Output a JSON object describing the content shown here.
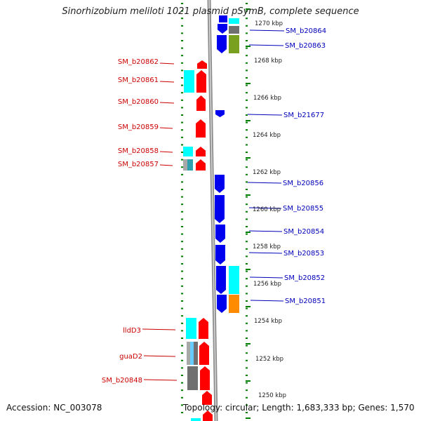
{
  "title": "Sinorhizobium meliloti 1021 plasmid pSymB, complete sequence",
  "accession_label": "Accession: NC_003078",
  "summary_label": "Topology: circular; Length: 1,683,333 bp; Genes: 1,570",
  "colors": {
    "reverse_strand": "#ff0000",
    "forward_strand": "#0000ee",
    "backbone": "#8c8c8c",
    "ticks": "#008000",
    "left_label": "#cc0000",
    "right_label": "#0000bb",
    "cog_cyan": "#00ffff",
    "cog_gray": "#707070",
    "cog_olive": "#7aa020",
    "cog_orange": "#ff8c00"
  },
  "scale_labels": [
    "1270 kbp",
    "1268 kbp",
    "1266 kbp",
    "1264 kbp",
    "1262 kbp",
    "1260 kbp",
    "1258 kbp",
    "1256 kbp",
    "1254 kbp",
    "1252 kbp",
    "1250 kbp"
  ],
  "left_genes": [
    "SM_b20862",
    "SM_b20861",
    "SM_b20860",
    "SM_b20859",
    "SM_b20858",
    "SM_b20857",
    "lldD3",
    "guaD2",
    "SM_b20848"
  ],
  "right_genes": [
    "SM_b20864",
    "SM_b20863",
    "SM_b21677",
    "SM_b20856",
    "SM_b20855",
    "SM_b20854",
    "SM_b20853",
    "SM_b20852",
    "SM_b20851"
  ]
}
